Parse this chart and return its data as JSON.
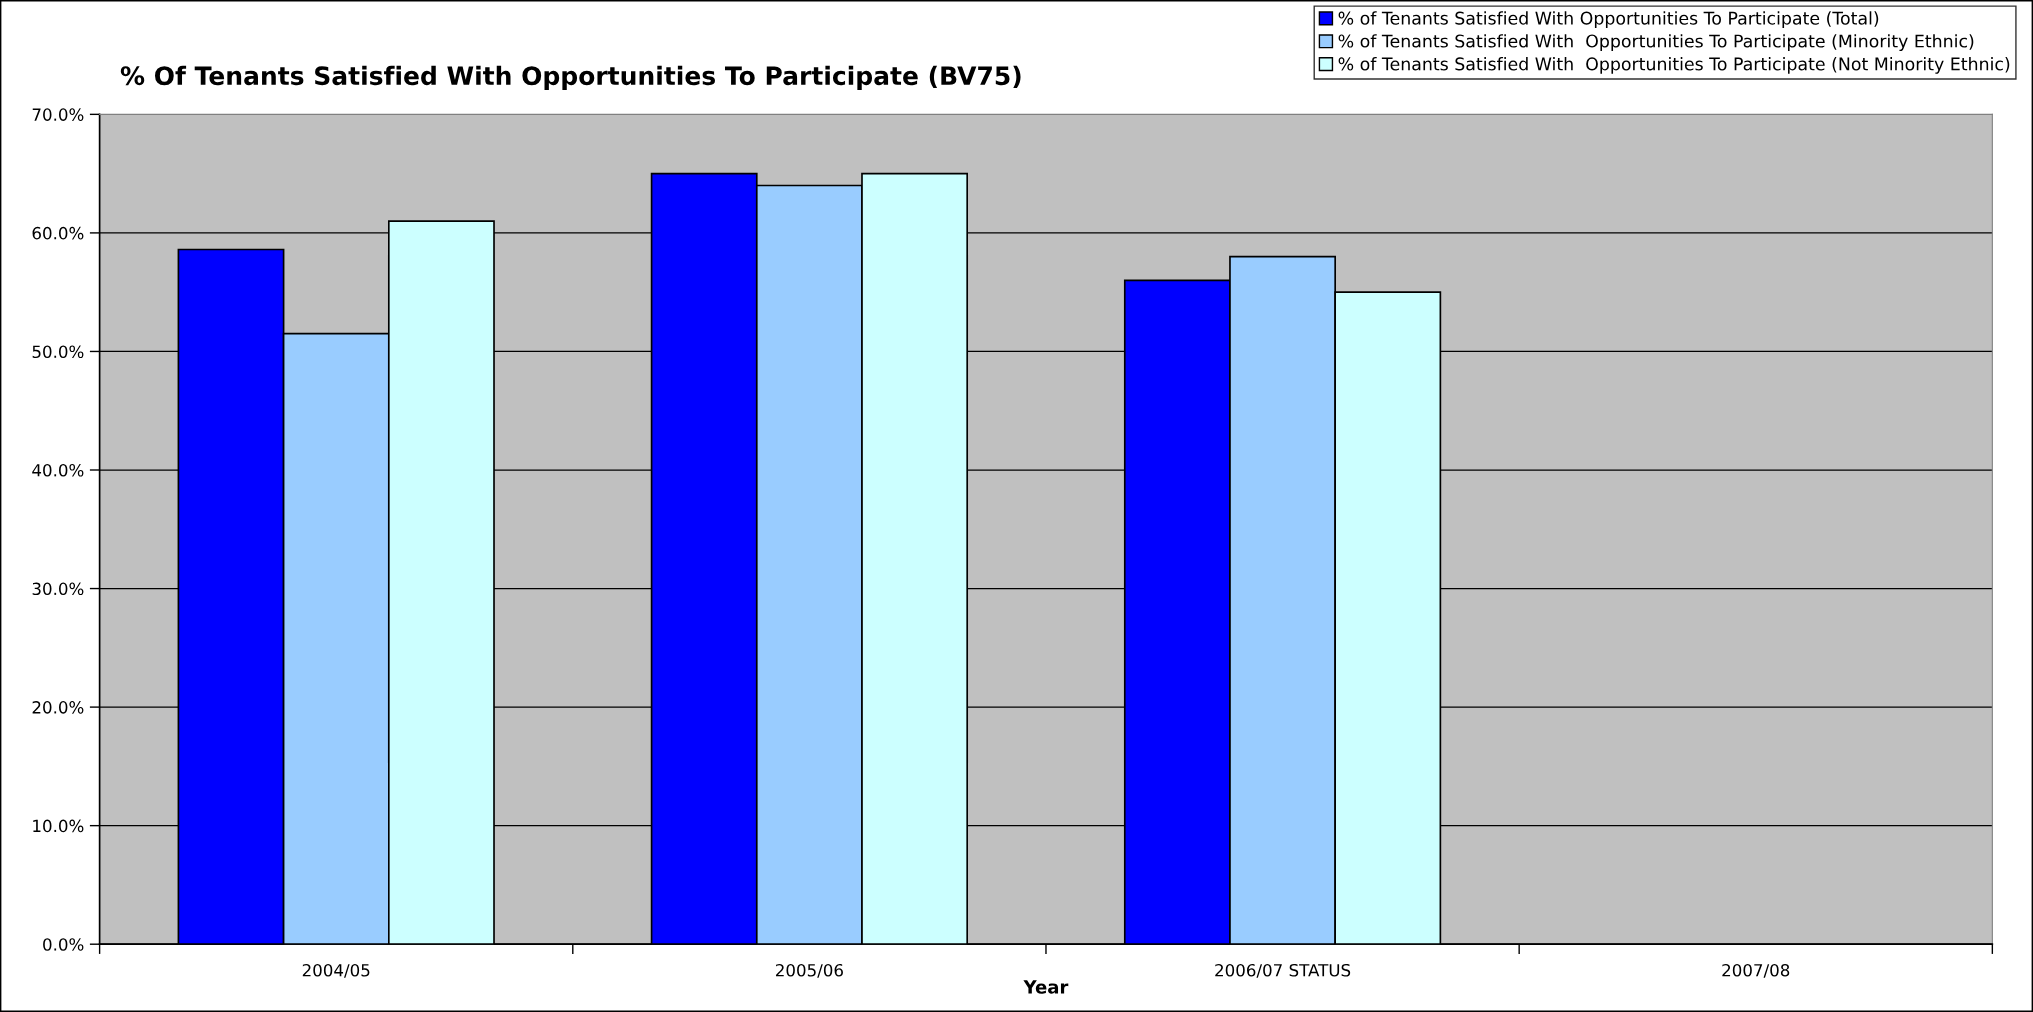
{
  "chart_data": {
    "type": "bar",
    "title": "% Of Tenants Satisfied With Opportunities To Participate (BV75)",
    "xlabel": "Year",
    "categories": [
      "2004/05",
      "2005/06",
      "2006/07 STATUS",
      "2007/08"
    ],
    "series": [
      {
        "name": "% of Tenants Satisfied With Opportunities To Participate (Total)",
        "color": "#0000ff",
        "values": [
          58.6,
          65,
          56,
          null
        ]
      },
      {
        "name": "% of Tenants Satisfied With  Opportunities To Participate (Minority Ethnic)",
        "color": "#99ccff",
        "values": [
          51.5,
          64,
          58,
          null
        ]
      },
      {
        "name": "% of Tenants Satisfied With  Opportunities To Participate (Not Minority Ethnic)",
        "color": "#ccffff",
        "values": [
          61,
          65,
          55,
          null
        ]
      }
    ],
    "ylim": [
      0,
      70
    ],
    "yticks": [
      {
        "value": 0,
        "label": "0.0%"
      },
      {
        "value": 10,
        "label": "10.0%"
      },
      {
        "value": 20,
        "label": "20.0%"
      },
      {
        "value": 30,
        "label": "30.0%"
      },
      {
        "value": 40,
        "label": "40.0%"
      },
      {
        "value": 50,
        "label": "50.0%"
      },
      {
        "value": 60,
        "label": "60.0%"
      },
      {
        "value": 70,
        "label": "70.0%"
      }
    ],
    "grid": "y",
    "legend": "top right"
  }
}
